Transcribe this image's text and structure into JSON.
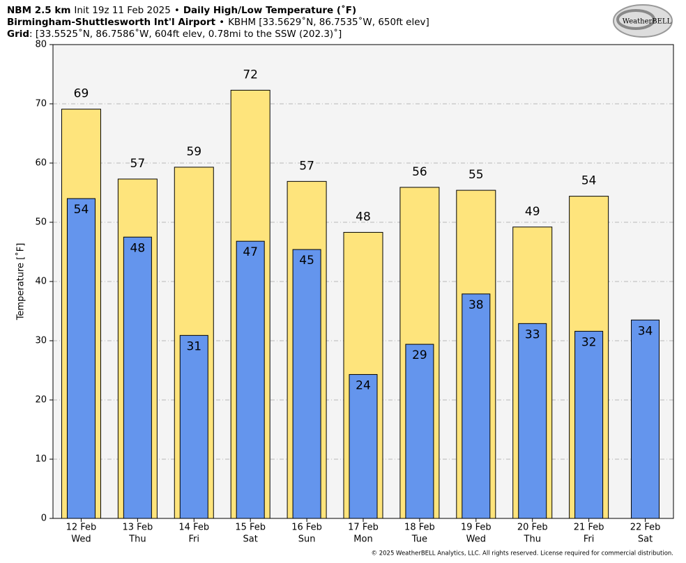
{
  "chart_data": {
    "type": "bar",
    "header_lines": [
      [
        {
          "text": "NBM 2.5 km",
          "bold": true
        },
        {
          "text": "Init 19z 11 Feb 2025",
          "bold": false
        },
        {
          "text": "•",
          "bold": false
        },
        {
          "text": "Daily High/Low Temperature (˚F)",
          "bold": true
        }
      ],
      [
        {
          "text": "Birmingham-Shuttlesworth Int'l Airport",
          "bold": true
        },
        {
          "text": "•",
          "bold": false
        },
        {
          "text": "KBHM [33.5629˚N, 86.7535˚W, 650ft elev]",
          "bold": false
        }
      ],
      [
        {
          "text": "Grid",
          "bold": true
        },
        {
          "text": ": [33.5525˚N, 86.7586˚W, 604ft elev, 0.78mi to the SSW (202.3)˚]",
          "bold": false
        }
      ]
    ],
    "logo": "WeatherBELL",
    "footer": "© 2025 WeatherBELL Analytics, LLC. All rights reserved. License required for commercial distribution.",
    "y_label": "Temperature [˚F]",
    "categories": [
      "12 Feb",
      "13 Feb",
      "14 Feb",
      "15 Feb",
      "16 Feb",
      "17 Feb",
      "18 Feb",
      "19 Feb",
      "20 Feb",
      "21 Feb",
      "22 Feb"
    ],
    "category_days": [
      "Wed",
      "Thu",
      "Fri",
      "Sat",
      "Sun",
      "Mon",
      "Tue",
      "Wed",
      "Thu",
      "Fri",
      "Sat"
    ],
    "series": [
      {
        "color": "#fee47c",
        "values": [
          69.1,
          57.3,
          59.3,
          72.3,
          56.9,
          48.3,
          55.9,
          55.4,
          49.2,
          54.4,
          null
        ],
        "value_labels": [
          "69",
          "57",
          "59",
          "72",
          "57",
          "48",
          "56",
          "55",
          "49",
          "54",
          null
        ]
      },
      {
        "color": "#6495ed",
        "values": [
          54.0,
          47.5,
          30.9,
          46.8,
          45.4,
          24.3,
          29.4,
          37.9,
          32.9,
          31.6,
          33.5
        ],
        "value_labels": [
          "54",
          "48",
          "31",
          "47",
          "45",
          "24",
          "29",
          "38",
          "33",
          "32",
          "34"
        ]
      }
    ],
    "ylim": [
      0,
      80
    ],
    "yticks": [
      0,
      10,
      20,
      30,
      40,
      50,
      60,
      70,
      80
    ],
    "grid": true
  }
}
